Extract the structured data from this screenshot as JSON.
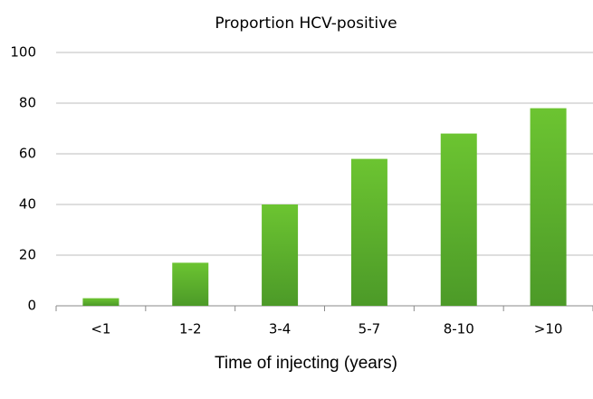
{
  "chart_data": {
    "type": "bar",
    "title": "Proportion HCV-positive",
    "x_label": "Time of injecting (years)",
    "categories": [
      "<1",
      "1-2",
      "3-4",
      "5-7",
      "8-10",
      ">10"
    ],
    "values": [
      3,
      17,
      40,
      58,
      68,
      78
    ],
    "color": "#6cc431",
    "ylim": [
      0,
      100
    ],
    "yticks": [
      0,
      20,
      40,
      60,
      80,
      100
    ],
    "grid": true
  }
}
